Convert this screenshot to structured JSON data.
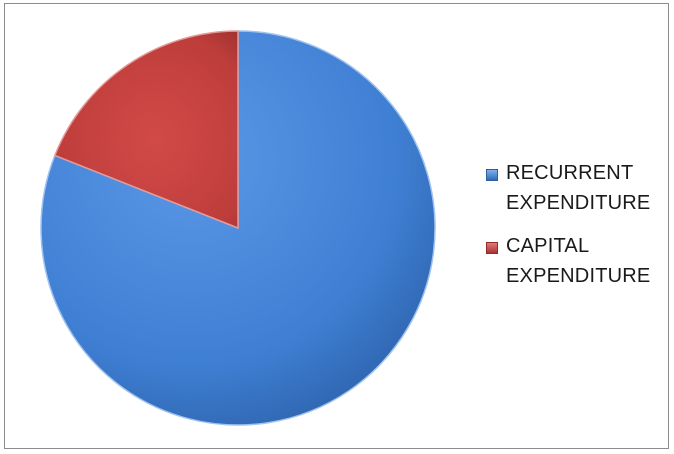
{
  "chart_data": {
    "type": "pie",
    "title": "",
    "slices": [
      {
        "label": "RECURRENT EXPENDITURE",
        "value": 81,
        "color": "#4a86d8"
      },
      {
        "label": "CAPITAL EXPENDITURE",
        "value": 19,
        "color": "#c0403f"
      }
    ],
    "legend_position": "right"
  }
}
